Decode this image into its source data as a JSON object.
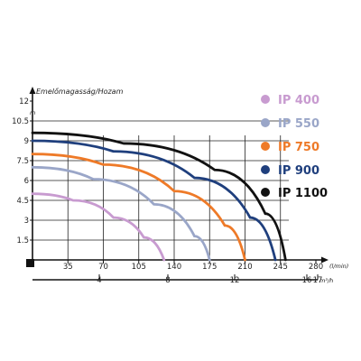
{
  "chart_data": {
    "type": "line",
    "title": "Emelőmagasság/Hozam",
    "ylabel_unit": "m",
    "xlabel_unit": "l/min",
    "x2label_unit": "m³/h",
    "x_ticks": [
      35,
      70,
      105,
      140,
      175,
      210,
      245,
      280
    ],
    "x_tick_labels": [
      "35",
      "70",
      "105",
      "140",
      "175",
      "210",
      "245",
      "280"
    ],
    "y_ticks": [
      1.5,
      3,
      4.5,
      6,
      7.5,
      9,
      10.5,
      12
    ],
    "y_tick_labels": [
      "1.5",
      "3",
      "4.5",
      "6",
      "7.5",
      "9",
      "10.5",
      "12"
    ],
    "x2_ticks": [
      4,
      8,
      12,
      16,
      17
    ],
    "x2_tick_labels": [
      "4",
      "8",
      "12",
      "16",
      "17"
    ],
    "xlim": [
      0,
      280
    ],
    "ylim": [
      0,
      12
    ],
    "grid": true,
    "legend_position": "right",
    "series": [
      {
        "name": "IP 400",
        "color": "#c89bd0",
        "x": [
          0,
          40,
          80,
          110,
          130
        ],
        "y": [
          5,
          4.5,
          3.2,
          1.7,
          0
        ]
      },
      {
        "name": "IP 550",
        "color": "#9aa6c8",
        "x": [
          0,
          60,
          120,
          160,
          175
        ],
        "y": [
          7,
          6.1,
          4.2,
          1.8,
          0
        ]
      },
      {
        "name": "IP 750",
        "color": "#ee7a28",
        "x": [
          0,
          70,
          140,
          190,
          210
        ],
        "y": [
          8,
          7.2,
          5.2,
          2.6,
          0
        ]
      },
      {
        "name": "IP 900",
        "color": "#1f3f7d",
        "x": [
          0,
          80,
          160,
          215,
          240
        ],
        "y": [
          9,
          8.2,
          6.2,
          3.2,
          0
        ]
      },
      {
        "name": "IP 1100",
        "color": "#111111",
        "x": [
          0,
          90,
          180,
          230,
          250
        ],
        "y": [
          9.6,
          8.8,
          6.8,
          3.5,
          0
        ]
      }
    ]
  }
}
